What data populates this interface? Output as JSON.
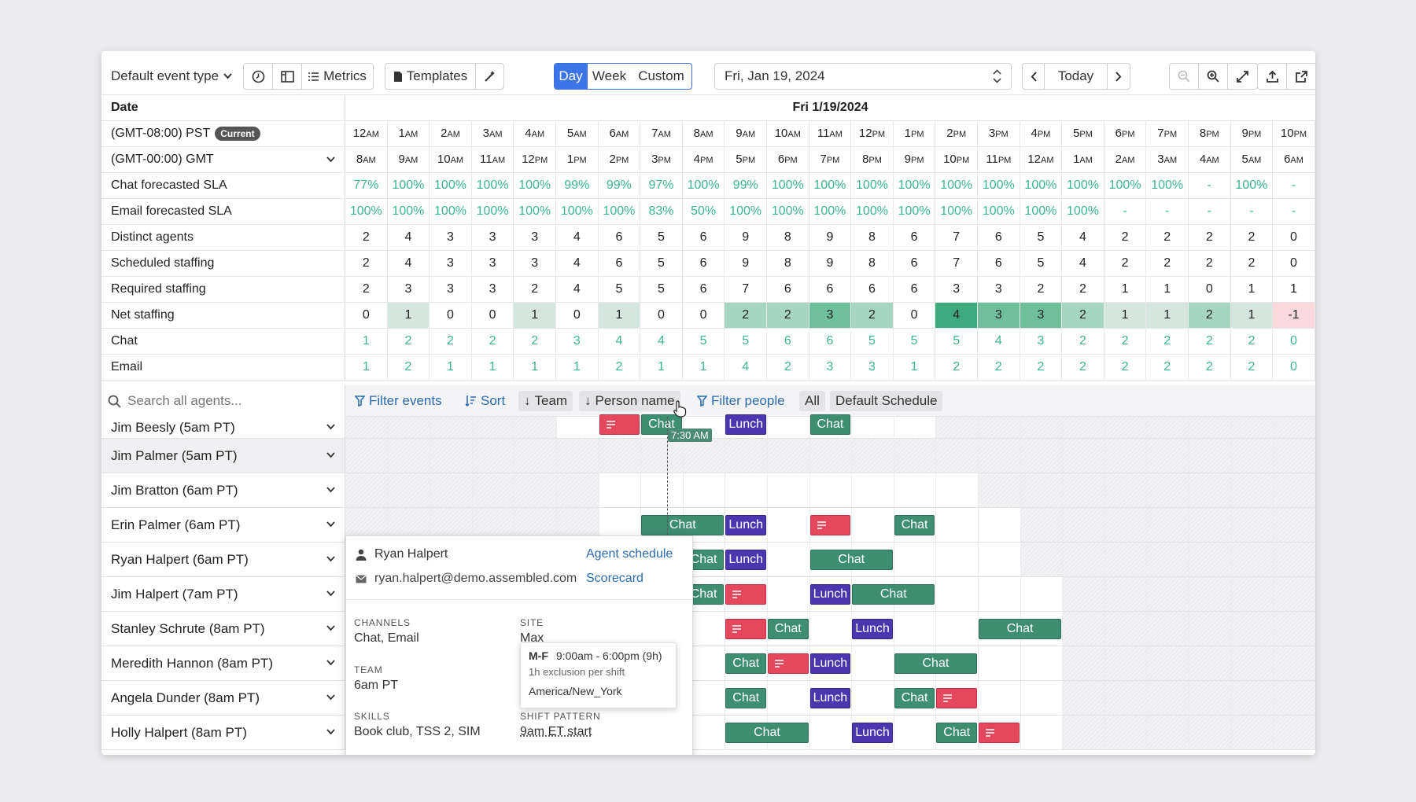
{
  "toolbar": {
    "event_type": "Default event type",
    "metrics": "Metrics",
    "templates": "Templates",
    "views": [
      "Day",
      "Week",
      "Custom"
    ],
    "active_view": "Day",
    "date": "Fri, Jan 19, 2024",
    "today": "Today"
  },
  "grid": {
    "date_label": "Date",
    "date_header": "Fri 1/19/2024",
    "tz1_label": "(GMT-08:00) PST",
    "tz1_badge": "Current",
    "tz2_label": "(GMT-00:00) GMT",
    "pst_hours": [
      [
        "12",
        "AM"
      ],
      [
        "1",
        "AM"
      ],
      [
        "2",
        "AM"
      ],
      [
        "3",
        "AM"
      ],
      [
        "4",
        "AM"
      ],
      [
        "5",
        "AM"
      ],
      [
        "6",
        "AM"
      ],
      [
        "7",
        "AM"
      ],
      [
        "8",
        "AM"
      ],
      [
        "9",
        "AM"
      ],
      [
        "10",
        "AM"
      ],
      [
        "11",
        "AM"
      ],
      [
        "12",
        "PM"
      ],
      [
        "1",
        "PM"
      ],
      [
        "2",
        "PM"
      ],
      [
        "3",
        "PM"
      ],
      [
        "4",
        "PM"
      ],
      [
        "5",
        "PM"
      ],
      [
        "6",
        "PM"
      ],
      [
        "7",
        "PM"
      ],
      [
        "8",
        "PM"
      ],
      [
        "9",
        "PM"
      ],
      [
        "10",
        "PM"
      ]
    ],
    "gmt_hours": [
      [
        "8",
        "AM"
      ],
      [
        "9",
        "AM"
      ],
      [
        "10",
        "AM"
      ],
      [
        "11",
        "AM"
      ],
      [
        "12",
        "PM"
      ],
      [
        "1",
        "PM"
      ],
      [
        "2",
        "PM"
      ],
      [
        "3",
        "PM"
      ],
      [
        "4",
        "PM"
      ],
      [
        "5",
        "PM"
      ],
      [
        "6",
        "PM"
      ],
      [
        "7",
        "PM"
      ],
      [
        "8",
        "PM"
      ],
      [
        "9",
        "PM"
      ],
      [
        "10",
        "PM"
      ],
      [
        "11",
        "PM"
      ],
      [
        "12",
        "AM"
      ],
      [
        "1",
        "AM"
      ],
      [
        "2",
        "AM"
      ],
      [
        "3",
        "AM"
      ],
      [
        "4",
        "AM"
      ],
      [
        "5",
        "AM"
      ],
      [
        "6",
        "AM"
      ]
    ],
    "rows": [
      {
        "label": "Chat forecasted SLA",
        "style": "green",
        "values": [
          "77%",
          "100%",
          "100%",
          "100%",
          "100%",
          "99%",
          "99%",
          "97%",
          "100%",
          "99%",
          "100%",
          "100%",
          "100%",
          "100%",
          "100%",
          "100%",
          "100%",
          "100%",
          "100%",
          "100%",
          "-",
          "100%",
          "-"
        ]
      },
      {
        "label": "Email forecasted SLA",
        "style": "green",
        "values": [
          "100%",
          "100%",
          "100%",
          "100%",
          "100%",
          "100%",
          "100%",
          "83%",
          "50%",
          "100%",
          "100%",
          "100%",
          "100%",
          "100%",
          "100%",
          "100%",
          "100%",
          "100%",
          "-",
          "-",
          "-",
          "-",
          "-"
        ]
      },
      {
        "label": "Distinct agents",
        "style": "plain",
        "values": [
          "2",
          "4",
          "3",
          "3",
          "3",
          "4",
          "6",
          "5",
          "6",
          "9",
          "8",
          "9",
          "8",
          "6",
          "7",
          "6",
          "5",
          "4",
          "2",
          "2",
          "2",
          "2",
          "0"
        ]
      },
      {
        "label": "Scheduled staffing",
        "style": "plain",
        "values": [
          "2",
          "4",
          "3",
          "3",
          "3",
          "4",
          "6",
          "5",
          "6",
          "9",
          "8",
          "9",
          "8",
          "6",
          "7",
          "6",
          "5",
          "4",
          "2",
          "2",
          "2",
          "2",
          "0"
        ]
      },
      {
        "label": "Required staffing",
        "style": "plain",
        "values": [
          "2",
          "3",
          "3",
          "3",
          "2",
          "4",
          "5",
          "5",
          "6",
          "7",
          "6",
          "6",
          "6",
          "6",
          "3",
          "3",
          "2",
          "2",
          "1",
          "1",
          "0",
          "1",
          "1"
        ]
      },
      {
        "label": "Net staffing",
        "style": "net",
        "values": [
          "0",
          "1",
          "0",
          "0",
          "1",
          "0",
          "1",
          "0",
          "0",
          "2",
          "2",
          "3",
          "2",
          "0",
          "4",
          "3",
          "3",
          "2",
          "1",
          "1",
          "2",
          "1",
          "-1"
        ]
      },
      {
        "label": "Chat",
        "style": "green",
        "values": [
          "1",
          "2",
          "2",
          "2",
          "2",
          "3",
          "4",
          "4",
          "5",
          "5",
          "6",
          "6",
          "5",
          "5",
          "5",
          "4",
          "3",
          "2",
          "2",
          "2",
          "2",
          "2",
          "0"
        ]
      },
      {
        "label": "Email",
        "style": "green",
        "values": [
          "1",
          "2",
          "1",
          "1",
          "1",
          "1",
          "2",
          "1",
          "1",
          "4",
          "2",
          "3",
          "3",
          "1",
          "2",
          "2",
          "2",
          "2",
          "2",
          "2",
          "2",
          "2",
          "0"
        ]
      }
    ]
  },
  "filters": {
    "search_placeholder": "Search all agents...",
    "filter_events": "Filter events",
    "sort": "Sort",
    "team": "Team",
    "person_name": "Person name",
    "filter_people": "Filter people",
    "all": "All",
    "default_schedule": "Default Schedule"
  },
  "agents": [
    "Jim Beesly (5am PT)",
    "Jim Palmer (5am PT)",
    "Jim Bratton (6am PT)",
    "Erin Palmer (6am PT)",
    "Ryan Halpert (6am PT)",
    "Jim Halpert (7am PT)",
    "Stanley Schrute (8am PT)",
    "Meredith Hannon (8am PT)",
    "Angela Dunder (8am PT)",
    "Holly Halpert (8am PT)"
  ],
  "events": {
    "chat": "Chat",
    "lunch": "Lunch"
  },
  "current_time": "7:30 AM",
  "popup": {
    "name": "Ryan Halpert",
    "agent_schedule": "Agent schedule",
    "email": "ryan.halpert@demo.assembled.com",
    "scorecard": "Scorecard",
    "channels_cap": "CHANNELS",
    "channels": "Chat, Email",
    "site_cap": "SITE",
    "site": "Max",
    "team_cap": "TEAM",
    "team": "6am PT",
    "skills_cap": "SKILLS",
    "skills": "Book club, TSS 2, SIM",
    "shift_cap": "SHIFT PATTERN",
    "shift": "9am ET start"
  },
  "tooltip": {
    "days": "M-F",
    "hours": "9:00am - 6:00pm (9h)",
    "exclusion": "1h exclusion per shift",
    "timezone": "America/New_York"
  }
}
